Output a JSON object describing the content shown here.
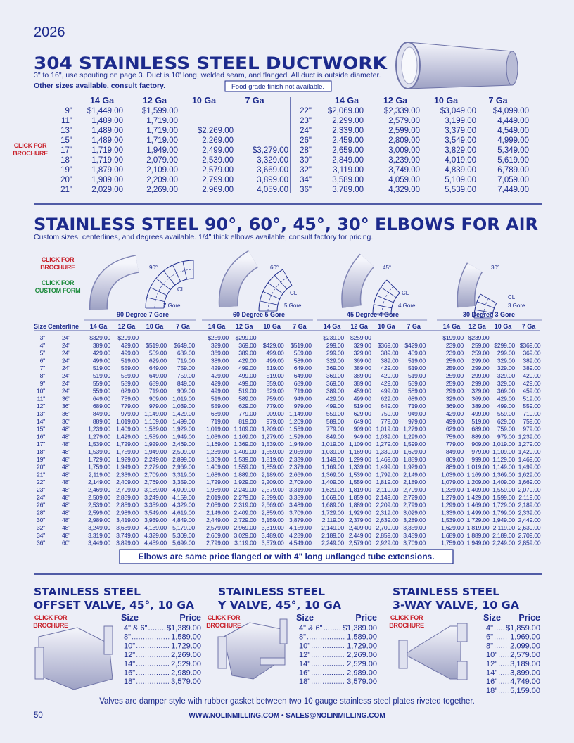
{
  "year": "2026",
  "ductwork": {
    "title": "304 STAINLESS STEEL DUCTWORK",
    "note": "3\" to 16\", use spouting on page 3. Duct is 10' long, welded seam, and flanged. All duct is outside diameter.",
    "note2": "Other sizes available, consult factory.",
    "finish_note": "Food grade finish not available.",
    "brochure_link": [
      "CLICK FOR",
      "BROCHURE"
    ],
    "gauges": [
      "14 Ga",
      "12 Ga",
      "10 Ga",
      "7 Ga"
    ],
    "rows_left": [
      [
        "9\"",
        "$1,449.00",
        "$1,599.00",
        null,
        null
      ],
      [
        "11\"",
        "1,489.00",
        "1,719.00",
        null,
        null
      ],
      [
        "13\"",
        "1,489.00",
        "1,719.00",
        "$2,269.00",
        null
      ],
      [
        "15\"",
        "1,489.00",
        "1,719.00",
        "2,269.00",
        null
      ],
      [
        "17\"",
        "1,719.00",
        "1,949.00",
        "2,499.00",
        "$3,279.00"
      ],
      [
        "18\"",
        "1,719.00",
        "2,079.00",
        "2,539.00",
        "3,329.00"
      ],
      [
        "19\"",
        "1,879.00",
        "2,109.00",
        "2,579.00",
        "3,669.00"
      ],
      [
        "20\"",
        "1,909.00",
        "2,209.00",
        "2,799.00",
        "3,899.00"
      ],
      [
        "21\"",
        "2,029.00",
        "2,269.00",
        "2,969.00",
        "4,059.00"
      ]
    ],
    "rows_right": [
      [
        "22\"",
        "$2,069.00",
        "$2,339.00",
        "$3,049.00",
        "$4,099.00"
      ],
      [
        "23\"",
        "2,299.00",
        "2,579.00",
        "3,199.00",
        "4,449.00"
      ],
      [
        "24\"",
        "2,339.00",
        "2,599.00",
        "3,379.00",
        "4,549.00"
      ],
      [
        "26\"",
        "2,459.00",
        "2,809.00",
        "3,549.00",
        "4,999.00"
      ],
      [
        "28\"",
        "2,659.00",
        "3,009.00",
        "3,829.00",
        "5,349.00"
      ],
      [
        "30\"",
        "2,849.00",
        "3,239.00",
        "4,019.00",
        "5,619.00"
      ],
      [
        "32\"",
        "3,119.00",
        "3,749.00",
        "4,839.00",
        "6,789.00"
      ],
      [
        "34\"",
        "3,589.00",
        "4,059.00",
        "5,109.00",
        "7,059.00"
      ],
      [
        "36\"",
        "3,789.00",
        "4,329.00",
        "5,539.00",
        "7,449.00"
      ]
    ]
  },
  "elbows": {
    "title": "STAINLESS STEEL  90°, 60°, 45°, 30° ELBOWS FOR AIR",
    "note": "Custom sizes, centerlines, and degrees available. 1/4\" thick elbows available, consult factory for pricing.",
    "brochure_link": [
      "CLICK FOR",
      "BROCHURE"
    ],
    "custom_form_link": [
      "CLICK FOR",
      "CUSTOM FORM"
    ],
    "diagrams": [
      {
        "angle": "90°",
        "cl": "CL",
        "gores": "7 Gore"
      },
      {
        "angle": "60°",
        "cl": "CL",
        "gores": "5 Gore"
      },
      {
        "angle": "45°",
        "cl": "CL",
        "gores": "4 Gore"
      },
      {
        "angle": "30°",
        "cl": "CL",
        "gores": "3 Gore"
      }
    ],
    "groups": [
      "90 Degree 7 Gore",
      "60 Degree 5 Gore",
      "45 Degree 4 Gore",
      "30 Degree 3 Gore"
    ],
    "size_header": "Size",
    "centerline_header": "Centerline",
    "gauges": [
      "14 Ga",
      "12 Ga",
      "10 Ga",
      "7 Ga"
    ],
    "rows": [
      [
        "3\"",
        "24\"",
        "$329.00",
        "$299.00",
        null,
        null,
        "$259.00",
        "$299.00",
        null,
        null,
        "$239.00",
        "$259.00",
        null,
        null,
        "$199.00",
        "$239.00",
        null,
        null
      ],
      [
        "4\"",
        "24\"",
        "389.00",
        "429.00",
        "$519.00",
        "$649.00",
        "329.00",
        "369.00",
        "$429.00",
        "$519.00",
        "299.00",
        "329.00",
        "$369.00",
        "$429.00",
        "239.00",
        "259.00",
        "$299.00",
        "$369.00"
      ],
      [
        "5\"",
        "24\"",
        "429.00",
        "499.00",
        "559.00",
        "689.00",
        "369.00",
        "389.00",
        "499.00",
        "559.00",
        "299.00",
        "329.00",
        "389.00",
        "459.00",
        "239.00",
        "259.00",
        "299.00",
        "369.00"
      ],
      [
        "6\"",
        "24\"",
        "499.00",
        "519.00",
        "629.00",
        "719.00",
        "389.00",
        "429.00",
        "499.00",
        "589.00",
        "329.00",
        "369.00",
        "389.00",
        "519.00",
        "259.00",
        "299.00",
        "329.00",
        "389.00"
      ],
      [
        "7\"",
        "24\"",
        "519.00",
        "559.00",
        "649.00",
        "759.00",
        "429.00",
        "499.00",
        "519.00",
        "649.00",
        "369.00",
        "389.00",
        "429.00",
        "519.00",
        "259.00",
        "299.00",
        "329.00",
        "389.00"
      ],
      [
        "8\"",
        "24\"",
        "519.00",
        "559.00",
        "649.00",
        "759.00",
        "429.00",
        "499.00",
        "519.00",
        "649.00",
        "369.00",
        "389.00",
        "429.00",
        "519.00",
        "259.00",
        "299.00",
        "329.00",
        "429.00"
      ],
      [
        "9\"",
        "24\"",
        "559.00",
        "589.00",
        "689.00",
        "849.00",
        "429.00",
        "499.00",
        "559.00",
        "689.00",
        "369.00",
        "389.00",
        "429.00",
        "559.00",
        "259.00",
        "299.00",
        "329.00",
        "429.00"
      ],
      [
        "10\"",
        "24\"",
        "559.00",
        "629.00",
        "719.00",
        "909.00",
        "499.00",
        "519.00",
        "629.00",
        "719.00",
        "389.00",
        "459.00",
        "499.00",
        "589.00",
        "299.00",
        "329.00",
        "369.00",
        "459.00"
      ],
      [
        "11\"",
        "36\"",
        "649.00",
        "759.00",
        "909.00",
        "1,019.00",
        "519.00",
        "589.00",
        "759.00",
        "949.00",
        "429.00",
        "499.00",
        "629.00",
        "689.00",
        "329.00",
        "369.00",
        "429.00",
        "519.00"
      ],
      [
        "12\"",
        "36\"",
        "689.00",
        "779.00",
        "979.00",
        "1,039.00",
        "559.00",
        "629.00",
        "779.00",
        "979.00",
        "499.00",
        "519.00",
        "649.00",
        "719.00",
        "369.00",
        "389.00",
        "499.00",
        "559.00"
      ],
      [
        "13\"",
        "36\"",
        "849.00",
        "979.00",
        "1,149.00",
        "1,429.00",
        "689.00",
        "779.00",
        "909.00",
        "1,149.00",
        "559.00",
        "629.00",
        "759.00",
        "949.00",
        "429.00",
        "499.00",
        "559.00",
        "719.00"
      ],
      [
        "14\"",
        "36\"",
        "889.00",
        "1,019.00",
        "1,169.00",
        "1,499.00",
        "719.00",
        "819.00",
        "979.00",
        "1,209.00",
        "589.00",
        "649.00",
        "779.00",
        "979.00",
        "499.00",
        "519.00",
        "629.00",
        "759.00"
      ],
      [
        "15\"",
        "48\"",
        "1,239.00",
        "1,409.00",
        "1,539.00",
        "1,929.00",
        "1,019.00",
        "1,109.00",
        "1,209.00",
        "1,559.00",
        "779.00",
        "909.00",
        "1,019.00",
        "1,279.00",
        "629.00",
        "689.00",
        "759.00",
        "979.00"
      ],
      [
        "16\"",
        "48\"",
        "1,279.00",
        "1,429.00",
        "1,559.00",
        "1,949.00",
        "1,039.00",
        "1,169.00",
        "1,279.00",
        "1,599.00",
        "849.00",
        "949.00",
        "1,039.00",
        "1,299.00",
        "759.00",
        "889.00",
        "979.00",
        "1,239.00"
      ],
      [
        "17\"",
        "48\"",
        "1,539.00",
        "1,729.00",
        "1,929.00",
        "2,469.00",
        "1,169.00",
        "1,369.00",
        "1,539.00",
        "1,949.00",
        "1,019.00",
        "1,109.00",
        "1,279.00",
        "1,599.00",
        "779.00",
        "909.00",
        "1,019.00",
        "1,279.00"
      ],
      [
        "18\"",
        "48\"",
        "1,539.00",
        "1,759.00",
        "1,949.00",
        "2,509.00",
        "1,239.00",
        "1,409.00",
        "1,559.00",
        "2,059.00",
        "1,039.00",
        "1,169.00",
        "1,339.00",
        "1,629.00",
        "849.00",
        "979.00",
        "1,109.00",
        "1,429.00"
      ],
      [
        "19\"",
        "48\"",
        "1,729.00",
        "1,929.00",
        "2,249.00",
        "2,899.00",
        "1,369.00",
        "1,539.00",
        "1,819.00",
        "2,339.00",
        "1,149.00",
        "1,299.00",
        "1,469.00",
        "1,889.00",
        "869.00",
        "999.00",
        "1,129.00",
        "1,469.00"
      ],
      [
        "20\"",
        "48\"",
        "1,759.00",
        "1,949.00",
        "2,279.00",
        "2,969.00",
        "1,409.00",
        "1,559.00",
        "1,859.00",
        "2,379.00",
        "1,169.00",
        "1,339.00",
        "1,499.00",
        "1,929.00",
        "889.00",
        "1,019.00",
        "1,149.00",
        "1,499.00"
      ],
      [
        "21\"",
        "48\"",
        "2,119.00",
        "2,339.00",
        "2,709.00",
        "3,319.00",
        "1,689.00",
        "1,889.00",
        "2,189.00",
        "2,669.00",
        "1,369.00",
        "1,539.00",
        "1,799.00",
        "2,149.00",
        "1,039.00",
        "1,169.00",
        "1,369.00",
        "1,629.00"
      ],
      [
        "22\"",
        "48\"",
        "2,149.00",
        "2,409.00",
        "2,769.00",
        "3,359.00",
        "1,729.00",
        "1,929.00",
        "2,209.00",
        "2,709.00",
        "1,409.00",
        "1,559.00",
        "1,819.00",
        "2,189.00",
        "1,079.00",
        "1,209.00",
        "1,409.00",
        "1,669.00"
      ],
      [
        "23\"",
        "48\"",
        "2,469.00",
        "2,799.00",
        "3,189.00",
        "4,099.00",
        "1,989.00",
        "2,249.00",
        "2,579.00",
        "3,319.00",
        "1,629.00",
        "1,819.00",
        "2,119.00",
        "2,709.00",
        "1,239.00",
        "1,409.00",
        "1,559.00",
        "2,079.00"
      ],
      [
        "24\"",
        "48\"",
        "2,509.00",
        "2,839.00",
        "3,249.00",
        "4,159.00",
        "2,019.00",
        "2,279.00",
        "2,599.00",
        "3,359.00",
        "1,669.00",
        "1,859.00",
        "2,149.00",
        "2,729.00",
        "1,279.00",
        "1,429.00",
        "1,599.00",
        "2,119.00"
      ],
      [
        "26\"",
        "48\"",
        "2,539.00",
        "2,859.00",
        "3,359.00",
        "4,329.00",
        "2,059.00",
        "2,319.00",
        "2,669.00",
        "3,489.00",
        "1,689.00",
        "1,889.00",
        "2,209.00",
        "2,799.00",
        "1,299.00",
        "1,469.00",
        "1,729.00",
        "2,189.00"
      ],
      [
        "28\"",
        "48\"",
        "2,599.00",
        "2,989.00",
        "3,549.00",
        "4,619.00",
        "2,149.00",
        "2,409.00",
        "2,859.00",
        "3,709.00",
        "1,729.00",
        "1,929.00",
        "2,319.00",
        "3,029.00",
        "1,339.00",
        "1,499.00",
        "1,799.00",
        "2,339.00"
      ],
      [
        "30\"",
        "48\"",
        "2,989.00",
        "3,419.00",
        "3,939.00",
        "4,849.00",
        "2,449.00",
        "2,729.00",
        "3,159.00",
        "3,879.00",
        "2,119.00",
        "2,379.00",
        "2,639.00",
        "3,289.00",
        "1,539.00",
        "1,729.00",
        "1,949.00",
        "2,449.00"
      ],
      [
        "32\"",
        "48\"",
        "3,249.00",
        "3,639.00",
        "4,139.00",
        "5,179.00",
        "2,579.00",
        "2,969.00",
        "3,319.00",
        "4,159.00",
        "2,149.00",
        "2,409.00",
        "2,709.00",
        "3,359.00",
        "1,629.00",
        "1,819.00",
        "2,119.00",
        "2,639.00"
      ],
      [
        "34\"",
        "48\"",
        "3,319.00",
        "3,749.00",
        "4,329.00",
        "5,309.00",
        "2,669.00",
        "3,029.00",
        "3,489.00",
        "4,289.00",
        "2,189.00",
        "2,449.00",
        "2,859.00",
        "3,489.00",
        "1,689.00",
        "1,889.00",
        "2,189.00",
        "2,709.00"
      ],
      [
        "36\"",
        "60\"",
        "3,449.00",
        "3,899.00",
        "4,459.00",
        "5,699.00",
        "2,799.00",
        "3,119.00",
        "3,579.00",
        "4,549.00",
        "2,249.00",
        "2,579.00",
        "2,929.00",
        "3,709.00",
        "1,759.00",
        "1,949.00",
        "2,249.00",
        "2,859.00"
      ]
    ],
    "footnote": "Elbows are same price flanged or with 4\" long unflanged tube extensions."
  },
  "valves": [
    {
      "title": [
        "STAINLESS STEEL",
        "OFFSET VALVE, 45°, 10 GA"
      ],
      "brochure_link": [
        "CLICK FOR",
        "BROCHURE"
      ],
      "size_header": "Size",
      "price_header": "Price",
      "rows": [
        [
          "4\" & 6\"",
          "$1,389.00"
        ],
        [
          "8\"",
          "1,589.00"
        ],
        [
          "10\"",
          "1,729.00"
        ],
        [
          "12\"",
          "2,269.00"
        ],
        [
          "14\"",
          "2,529.00"
        ],
        [
          "16\"",
          "2,989.00"
        ],
        [
          "18\"",
          "3,579.00"
        ]
      ]
    },
    {
      "title": [
        "STAINLESS STEEL",
        "Y VALVE, 45°, 10 GA"
      ],
      "brochure_link": [
        "CLICK FOR",
        "BROCHURE"
      ],
      "size_header": "Size",
      "price_header": "Price",
      "rows": [
        [
          "4\" & 6\"",
          "$1,389.00"
        ],
        [
          "8\"",
          "1,589.00"
        ],
        [
          "10\"",
          "1,729.00"
        ],
        [
          "12\"",
          "2,269.00"
        ],
        [
          "14\"",
          "2,529.00"
        ],
        [
          "16\"",
          "2,989.00"
        ],
        [
          "18\"",
          "3,579.00"
        ]
      ]
    },
    {
      "title": [
        "STAINLESS STEEL",
        "3-WAY VALVE, 10 GA"
      ],
      "brochure_link": [
        "CLICK FOR",
        "BROCHURE"
      ],
      "size_header": "Size",
      "price_header": "Price",
      "rows": [
        [
          "4\"",
          "$1,859.00"
        ],
        [
          "6\"",
          "1,969.00"
        ],
        [
          "8\"",
          "2,099.00"
        ],
        [
          "10\"",
          "2,579.00"
        ],
        [
          "12\"",
          "3,189.00"
        ],
        [
          "14\"",
          "3,899.00"
        ],
        [
          "16\"",
          "4,749.00"
        ],
        [
          "18\"",
          "5,159.00"
        ]
      ]
    }
  ],
  "footer": {
    "note": "Valves are damper style with rubber gasket between two 10 gauge stainless steel plates riveted together.",
    "page_number": "50",
    "contact": "WWW.NOLINMILLING.COM • SALES@NOLINMILLING.COM"
  }
}
